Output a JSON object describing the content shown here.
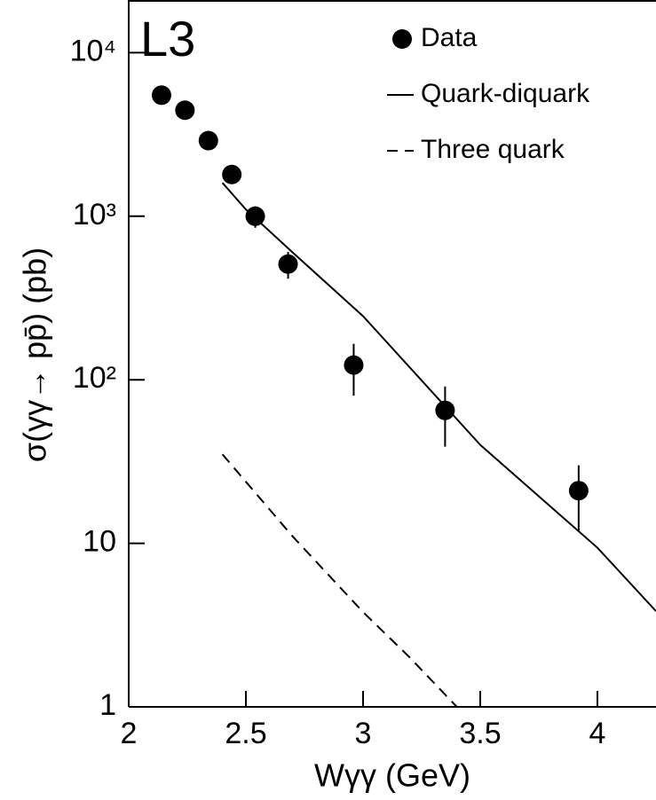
{
  "chart_data": {
    "type": "scatter",
    "annotation": "L3",
    "xlabel": "Wγγ (GeV)",
    "ylabel": "σ(γγ→ pp̄) (pb)",
    "xlim": [
      2,
      4.25
    ],
    "xticks": [
      2,
      2.5,
      3,
      3.5,
      4
    ],
    "ylim": [
      1,
      21000
    ],
    "yticks": [
      {
        "value": 1,
        "label": "1"
      },
      10,
      {
        "value": 100,
        "label": "10²"
      },
      {
        "value": 1000,
        "label": "10³"
      },
      {
        "value": 10000,
        "label": "10⁴"
      }
    ],
    "yscale": "log",
    "legend": "top-right",
    "series": [
      {
        "name": "Data",
        "type": "scatter",
        "color": "#000000",
        "x": [
          2.14,
          2.24,
          2.34,
          2.44,
          2.54,
          2.68,
          2.96,
          3.35,
          3.92
        ],
        "values": [
          5500,
          4450,
          2900,
          1800,
          1000,
          510,
          123,
          65,
          21
        ],
        "errors": [
          0,
          0,
          0,
          0,
          150,
          95,
          43,
          26,
          9
        ]
      },
      {
        "name": "Quark-diquark",
        "type": "line",
        "color": "#000000",
        "linestyle": "solid",
        "x": [
          2.4,
          2.5,
          2.7,
          3.0,
          3.5,
          4.0,
          4.25
        ],
        "values": [
          1600,
          1100,
          600,
          245,
          40,
          9.4,
          3.85
        ]
      },
      {
        "name": "Three quark",
        "type": "line",
        "color": "#000000",
        "linestyle": "dashed",
        "x": [
          2.4,
          2.7,
          3.0,
          3.2,
          3.4
        ],
        "values": [
          35,
          11,
          3.8,
          2,
          1
        ]
      }
    ]
  }
}
